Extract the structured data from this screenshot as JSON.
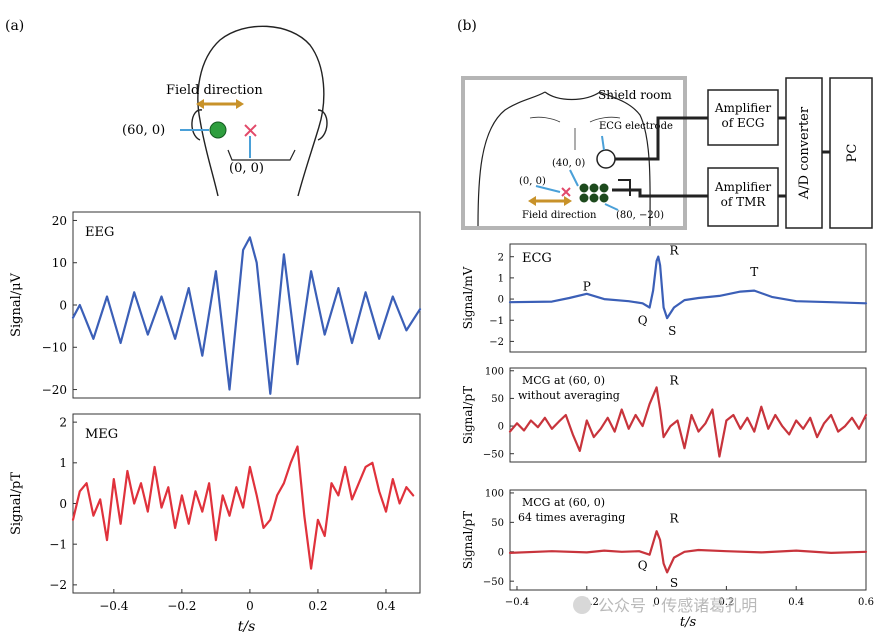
{
  "panels": {
    "a": {
      "label": "(a)"
    },
    "b": {
      "label": "(b)"
    }
  },
  "head_diagram": {
    "field_direction": "Field direction",
    "point_left": "(60, 0)",
    "point_center": "(0, 0)",
    "colors": {
      "green": "#2e9e3e",
      "arrow": "#c8922a",
      "marker": "#e24a6a",
      "pointer": "#4aa0d8"
    }
  },
  "setup_diagram": {
    "shield_room": "Shield room",
    "ecg_electrode": "ECG electrode",
    "pt_40_0": "(40, 0)",
    "pt_0_0": "(0, 0)",
    "pt_80_m20": "(80, −20)",
    "field_direction": "Field direction",
    "amp_ecg": [
      "Amplifier",
      "of ECG"
    ],
    "amp_tmr": [
      "Amplifier",
      "of TMR"
    ],
    "ad_converter": "A/D converter",
    "pc": "PC"
  },
  "chart_data": [
    {
      "type": "line",
      "id": "eeg",
      "title": "EEG",
      "xlabel": "",
      "ylabel": "Signal/μV",
      "xlim": [
        -0.52,
        0.5
      ],
      "ylim": [
        -22,
        22
      ],
      "xticks": [],
      "xticklabels": [],
      "yticks": [
        20,
        10,
        0,
        -10,
        -20
      ],
      "yticklabels": [
        "20",
        "10",
        "0",
        "−10",
        "−20"
      ],
      "series": [
        {
          "color": "#3b5fb7",
          "x": [
            -0.52,
            -0.5,
            -0.46,
            -0.42,
            -0.38,
            -0.34,
            -0.3,
            -0.26,
            -0.22,
            -0.18,
            -0.14,
            -0.1,
            -0.06,
            -0.02,
            0.0,
            0.02,
            0.06,
            0.1,
            0.14,
            0.18,
            0.22,
            0.26,
            0.3,
            0.34,
            0.38,
            0.42,
            0.46,
            0.5
          ],
          "y": [
            -3,
            0,
            -8,
            2,
            -9,
            3,
            -7,
            2,
            -8,
            4,
            -12,
            8,
            -20,
            13,
            16,
            10,
            -21,
            12,
            -14,
            8,
            -7,
            4,
            -9,
            3,
            -8,
            2,
            -6,
            -1
          ]
        }
      ]
    },
    {
      "type": "line",
      "id": "meg",
      "title": "MEG",
      "xlabel": "t/s",
      "ylabel": "Signal/pT",
      "xlim": [
        -0.52,
        0.5
      ],
      "ylim": [
        -2.2,
        2.2
      ],
      "xticks": [
        -0.4,
        -0.2,
        0,
        0.2,
        0.4
      ],
      "xticklabels": [
        "−0.4",
        "−0.2",
        "0",
        "0.2",
        "0.4"
      ],
      "yticks": [
        2,
        1,
        0,
        -1,
        -2
      ],
      "yticklabels": [
        "2",
        "1",
        "0",
        "−1",
        "−2"
      ],
      "series": [
        {
          "color": "#e0323c",
          "x": [
            -0.52,
            -0.5,
            -0.48,
            -0.46,
            -0.44,
            -0.42,
            -0.4,
            -0.38,
            -0.36,
            -0.34,
            -0.32,
            -0.3,
            -0.28,
            -0.26,
            -0.24,
            -0.22,
            -0.2,
            -0.18,
            -0.16,
            -0.14,
            -0.12,
            -0.1,
            -0.08,
            -0.06,
            -0.04,
            -0.02,
            0.0,
            0.02,
            0.04,
            0.06,
            0.08,
            0.1,
            0.12,
            0.14,
            0.16,
            0.18,
            0.2,
            0.22,
            0.24,
            0.26,
            0.28,
            0.3,
            0.32,
            0.34,
            0.36,
            0.38,
            0.4,
            0.42,
            0.44,
            0.46,
            0.48
          ],
          "y": [
            -0.4,
            0.3,
            0.5,
            -0.3,
            0.1,
            -0.9,
            0.6,
            -0.5,
            0.8,
            0.0,
            0.5,
            -0.2,
            0.9,
            -0.1,
            0.4,
            -0.6,
            0.2,
            -0.5,
            0.3,
            -0.2,
            0.5,
            -0.9,
            0.2,
            -0.3,
            0.4,
            -0.1,
            0.9,
            0.2,
            -0.6,
            -0.4,
            0.2,
            0.5,
            1.0,
            1.4,
            -0.3,
            -1.6,
            -0.4,
            -0.8,
            0.5,
            0.2,
            0.9,
            0.1,
            0.5,
            0.9,
            1.0,
            0.3,
            -0.2,
            0.6,
            0.0,
            0.4,
            0.2
          ]
        }
      ]
    },
    {
      "type": "line",
      "id": "ecg",
      "title": "ECG",
      "xlabel": "",
      "ylabel": "Signal/mV",
      "xlim": [
        -0.42,
        0.6
      ],
      "ylim": [
        -2.5,
        2.6
      ],
      "xticks": [],
      "xticklabels": [],
      "yticks": [
        2,
        1,
        0,
        -1,
        -2
      ],
      "yticklabels": [
        "2",
        "1",
        "0",
        "−1",
        "−2"
      ],
      "annotations": [
        {
          "text": "P",
          "x": -0.2,
          "y": 0.4
        },
        {
          "text": "Q",
          "x": -0.04,
          "y": -1.2
        },
        {
          "text": "R",
          "x": 0.05,
          "y": 2.1
        },
        {
          "text": "S",
          "x": 0.045,
          "y": -1.7
        },
        {
          "text": "T",
          "x": 0.28,
          "y": 1.1
        }
      ],
      "series": [
        {
          "color": "#3b5fb7",
          "x": [
            -0.42,
            -0.3,
            -0.25,
            -0.2,
            -0.15,
            -0.08,
            -0.04,
            -0.02,
            -0.01,
            0.0,
            0.005,
            0.01,
            0.02,
            0.03,
            0.05,
            0.08,
            0.12,
            0.18,
            0.24,
            0.28,
            0.33,
            0.4,
            0.5,
            0.6
          ],
          "y": [
            -0.15,
            -0.12,
            0.05,
            0.25,
            0.0,
            -0.1,
            -0.2,
            -0.4,
            0.4,
            1.8,
            2.0,
            1.6,
            -0.4,
            -0.9,
            -0.4,
            -0.05,
            0.05,
            0.15,
            0.35,
            0.4,
            0.1,
            -0.1,
            -0.15,
            -0.2
          ]
        }
      ]
    },
    {
      "type": "line",
      "id": "mcg1",
      "title": "MCG at (60, 0)",
      "subtitle": "without averaging",
      "xlabel": "",
      "ylabel": "Signal/pT",
      "xlim": [
        -0.42,
        0.6
      ],
      "ylim": [
        -65,
        105
      ],
      "xticks": [],
      "xticklabels": [],
      "yticks": [
        100,
        50,
        0,
        -50
      ],
      "yticklabels": [
        "100",
        "50",
        "0",
        "−50"
      ],
      "annotations": [
        {
          "text": "R",
          "x": 0.05,
          "y": 75
        }
      ],
      "series": [
        {
          "color": "#c8343c",
          "x": [
            -0.42,
            -0.4,
            -0.38,
            -0.36,
            -0.34,
            -0.32,
            -0.3,
            -0.28,
            -0.26,
            -0.24,
            -0.22,
            -0.2,
            -0.18,
            -0.16,
            -0.14,
            -0.12,
            -0.1,
            -0.08,
            -0.06,
            -0.04,
            -0.02,
            0.0,
            0.01,
            0.02,
            0.04,
            0.06,
            0.08,
            0.1,
            0.12,
            0.14,
            0.16,
            0.18,
            0.2,
            0.22,
            0.24,
            0.26,
            0.28,
            0.3,
            0.32,
            0.34,
            0.36,
            0.38,
            0.4,
            0.42,
            0.44,
            0.46,
            0.48,
            0.5,
            0.52,
            0.54,
            0.56,
            0.58,
            0.6
          ],
          "y": [
            -10,
            5,
            -8,
            10,
            -2,
            15,
            -5,
            8,
            20,
            -15,
            -45,
            10,
            -20,
            -5,
            15,
            -10,
            30,
            -5,
            20,
            0,
            40,
            70,
            30,
            -20,
            0,
            10,
            -40,
            20,
            -10,
            5,
            30,
            -55,
            10,
            20,
            -5,
            15,
            -10,
            35,
            -5,
            20,
            0,
            -15,
            10,
            -5,
            15,
            -20,
            5,
            20,
            -10,
            0,
            15,
            -5,
            20
          ]
        }
      ]
    },
    {
      "type": "line",
      "id": "mcg2",
      "title": "MCG at (60, 0)",
      "subtitle": "64 times averaging",
      "xlabel": "t/s",
      "ylabel": "Signal/pT",
      "xlim": [
        -0.42,
        0.6
      ],
      "ylim": [
        -65,
        105
      ],
      "xticks": [
        -0.4,
        -0.2,
        0,
        0.2,
        0.4,
        0.6
      ],
      "xticklabels": [
        "−0.4",
        "−0.2",
        "0",
        "0.2",
        "0.4",
        "0.6"
      ],
      "yticks": [
        100,
        50,
        0,
        -50
      ],
      "yticklabels": [
        "100",
        "50",
        "0",
        "−50"
      ],
      "annotations": [
        {
          "text": "R",
          "x": 0.05,
          "y": 50
        },
        {
          "text": "Q",
          "x": -0.04,
          "y": -30
        },
        {
          "text": "S",
          "x": 0.05,
          "y": -60
        }
      ],
      "series": [
        {
          "color": "#c8343c",
          "x": [
            -0.42,
            -0.3,
            -0.2,
            -0.15,
            -0.1,
            -0.05,
            -0.02,
            -0.01,
            0.0,
            0.01,
            0.02,
            0.03,
            0.05,
            0.08,
            0.12,
            0.2,
            0.3,
            0.4,
            0.5,
            0.6
          ],
          "y": [
            -2,
            1,
            -1,
            2,
            0,
            1,
            -5,
            15,
            35,
            20,
            -20,
            -35,
            -10,
            0,
            3,
            1,
            -1,
            2,
            -2,
            0
          ]
        }
      ]
    }
  ],
  "watermark": "公众号 · 传感诸葛孔明"
}
